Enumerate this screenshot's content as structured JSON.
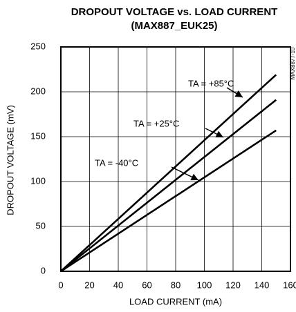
{
  "chart_data": {
    "type": "line",
    "title": "DROPOUT VOLTAGE vs. LOAD CURRENT",
    "subtitle": "(MAX887_EUK25)",
    "x_label": "LOAD CURRENT (mA)",
    "y_label": "DROPOUT VOLTAGE (mV)",
    "side_note": "MAX8877-10",
    "x": [
      0,
      150
    ],
    "series": [
      {
        "name": "TA = +85°C",
        "color": "#000000",
        "values": [
          0,
          219
        ]
      },
      {
        "name": "TA = +25°C",
        "color": "#000000",
        "values": [
          0,
          191
        ]
      },
      {
        "name": "TA = -40°C",
        "color": "#000000",
        "values": [
          0,
          157
        ]
      }
    ],
    "xlim": [
      0,
      160
    ],
    "xticks": [
      0,
      20,
      40,
      60,
      80,
      100,
      120,
      140,
      160
    ],
    "ylim": [
      0,
      250
    ],
    "yticks": [
      0,
      50,
      100,
      150,
      200,
      250
    ],
    "grid": true
  }
}
